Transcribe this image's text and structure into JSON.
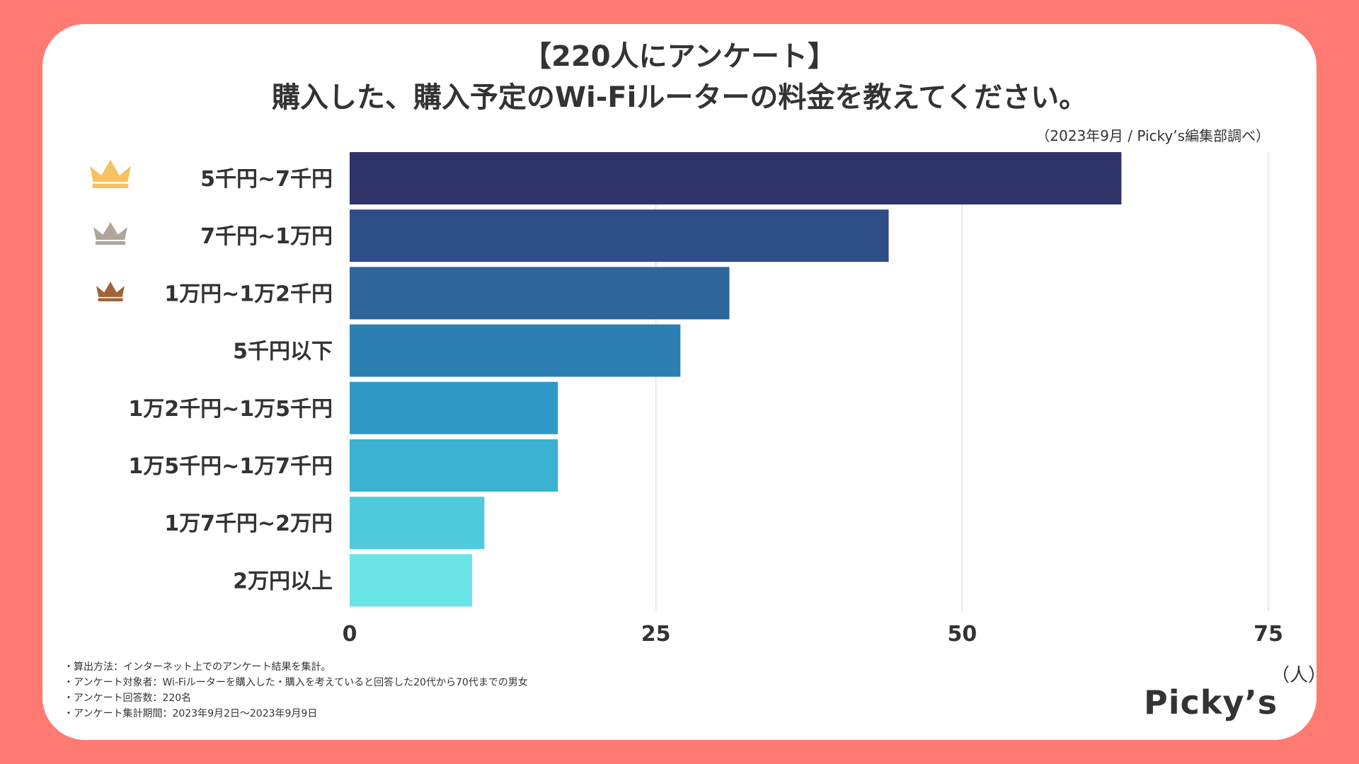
{
  "title": {
    "line1": "【220人にアンケート】",
    "line2": "購入した、購入予定のWi-Fiルーターの料金を教えてください。"
  },
  "source": "（2023年9月 / Picky’s編集部調べ）",
  "unit_label": "（人）",
  "brand": "Picky’s",
  "notes": [
    "・算出方法：インターネット上でのアンケート結果を集計。",
    "・アンケート対象者：Wi-Fiルーターを購入した・購入を考えていると回答した20代から70代までの男女",
    "・アンケート回答数：220名",
    "・アンケート集計期間：2023年9月2日〜2023年9月9日"
  ],
  "chart_data": {
    "type": "bar",
    "orientation": "horizontal",
    "title": "購入した、購入予定のWi-Fiルーターの料金を教えてください。",
    "xlabel": "（人）",
    "ylabel": "",
    "xlim": [
      0,
      75
    ],
    "xticks": [
      0,
      25,
      50,
      75
    ],
    "grid": true,
    "categories": [
      "5千円~7千円",
      "7千円~1万円",
      "1万円~1万2千円",
      "5千円以下",
      "1万2千円~1万5千円",
      "1万5千円~1万7千円",
      "1万7千円~2万円",
      "2万円以上"
    ],
    "values": [
      63,
      44,
      31,
      27,
      17,
      17,
      11,
      10
    ],
    "colors": [
      "#2e3468",
      "#2f4d86",
      "#2e669c",
      "#2c80b1",
      "#3199c5",
      "#3bb1d1",
      "#4fcbdd",
      "#6ae4e6"
    ],
    "rank_icons": [
      {
        "rank": 1,
        "icon": "gold-crown-icon",
        "color": "#f7c160"
      },
      {
        "rank": 2,
        "icon": "silver-crown-icon",
        "color": "#b0a59b"
      },
      {
        "rank": 3,
        "icon": "bronze-crown-icon",
        "color": "#a0643a"
      }
    ]
  }
}
